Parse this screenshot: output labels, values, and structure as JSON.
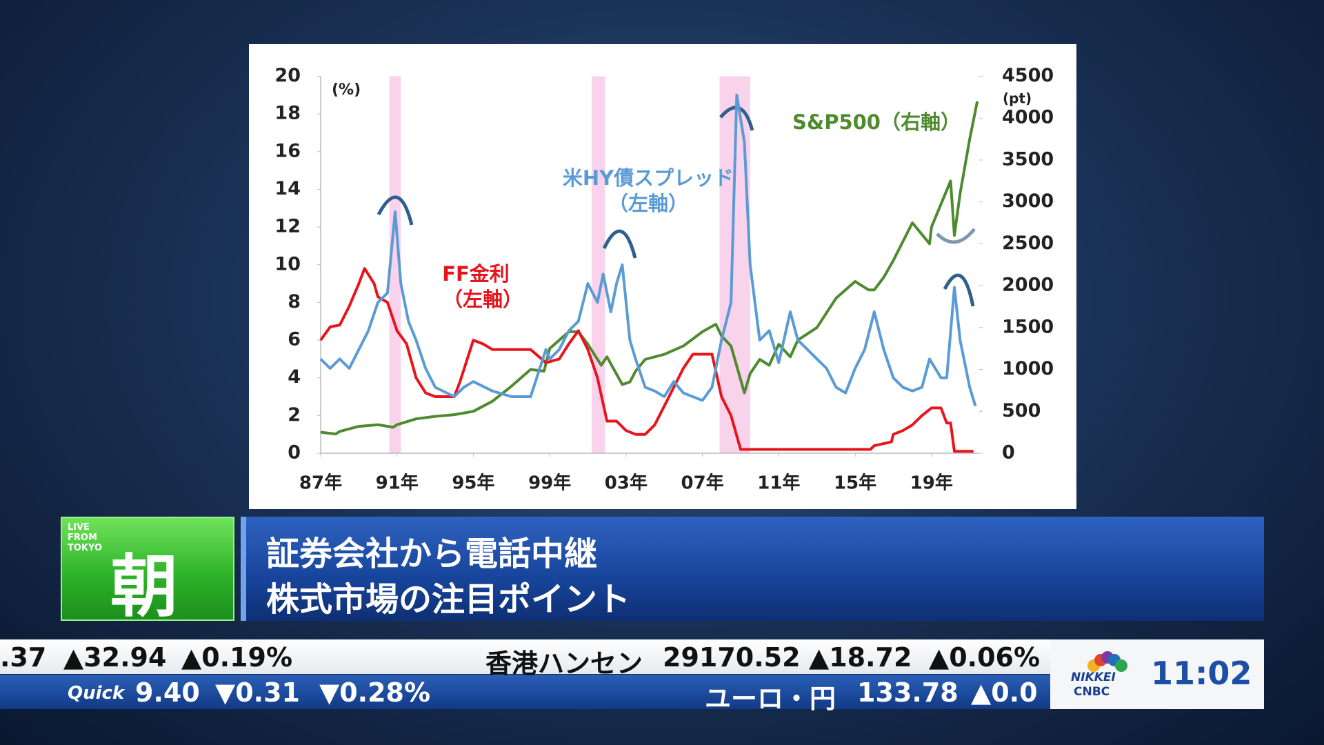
{
  "chart_data": {
    "type": "line",
    "y_unit": "(%)",
    "y2_unit": "(pt)",
    "xlim": [
      1987,
      2021.5
    ],
    "ylim": [
      0,
      20
    ],
    "y2lim": [
      0,
      4500
    ],
    "xticks": [
      {
        "value": 1987,
        "label": "87年"
      },
      {
        "value": 1991,
        "label": "91年"
      },
      {
        "value": 1995,
        "label": "95年"
      },
      {
        "value": 1999,
        "label": "99年"
      },
      {
        "value": 2003,
        "label": "03年"
      },
      {
        "value": 2007,
        "label": "07年"
      },
      {
        "value": 2011,
        "label": "11年"
      },
      {
        "value": 2015,
        "label": "15年"
      },
      {
        "value": 2019,
        "label": "19年"
      }
    ],
    "yticks": [
      0,
      2,
      4,
      6,
      8,
      10,
      12,
      14,
      16,
      18,
      20
    ],
    "y2ticks": [
      0,
      500,
      1000,
      1500,
      2000,
      2500,
      3000,
      3500,
      4000,
      4500
    ],
    "shaded_periods": [
      [
        1990.6,
        1991.2
      ],
      [
        2001.2,
        2001.9
      ],
      [
        2007.9,
        2009.5
      ]
    ],
    "shade_color": "#f9d3ec",
    "series": [
      {
        "name": "FF金利",
        "label_lines": [
          "FF金利",
          "（左軸）"
        ],
        "color": "#e8141c",
        "x": [
          1987,
          1987.5,
          1988,
          1988.5,
          1989,
          1989.3,
          1989.8,
          1990,
          1990.5,
          1991,
          1991.5,
          1992,
          1992.5,
          1993,
          1994,
          1994.3,
          1995,
          1995.5,
          1996,
          1997,
          1998,
          1998.8,
          1999.5,
          2000,
          2000.5,
          2001,
          2001.5,
          2002,
          2002.5,
          2003,
          2003.5,
          2004,
          2004.5,
          2005,
          2005.5,
          2006,
          2006.5,
          2007.5,
          2008,
          2008.5,
          2009,
          2015.8,
          2016,
          2016.9,
          2017,
          2017.5,
          2018,
          2018.5,
          2019,
          2019.5,
          2019.8,
          2020,
          2020.2,
          2021.2
        ],
        "values": [
          6.0,
          6.7,
          6.8,
          7.8,
          9.0,
          9.8,
          9.0,
          8.3,
          8.0,
          6.5,
          5.8,
          4.0,
          3.2,
          3.0,
          3.0,
          3.8,
          6.0,
          5.8,
          5.5,
          5.5,
          5.5,
          4.8,
          5.0,
          5.8,
          6.5,
          5.5,
          4.0,
          1.7,
          1.7,
          1.2,
          1.0,
          1.0,
          1.5,
          2.5,
          3.5,
          4.5,
          5.25,
          5.25,
          3.0,
          2.0,
          0.2,
          0.2,
          0.4,
          0.6,
          1.0,
          1.2,
          1.5,
          2.0,
          2.4,
          2.4,
          1.6,
          1.6,
          0.1,
          0.1
        ]
      },
      {
        "name": "米HY債スプレッド",
        "label_lines": [
          "米HY債スプレッド",
          "（左軸）"
        ],
        "color": "#5b9bd5",
        "x": [
          1987,
          1987.5,
          1988,
          1988.5,
          1989,
          1989.5,
          1990,
          1990.5,
          1990.9,
          1991.2,
          1991.6,
          1992,
          1992.5,
          1993,
          1994,
          1994.5,
          1995,
          1996,
          1997,
          1998,
          1998.8,
          1999,
          1999.5,
          2000,
          2000.5,
          2001,
          2001.5,
          2001.8,
          2002.2,
          2002.5,
          2002.8,
          2003.2,
          2003.5,
          2004,
          2004.5,
          2005,
          2005.5,
          2006,
          2007,
          2007.5,
          2008,
          2008.5,
          2008.8,
          2009.2,
          2009.5,
          2010,
          2010.5,
          2011,
          2011.6,
          2012,
          2012.5,
          2013,
          2013.5,
          2014,
          2014.5,
          2015,
          2015.5,
          2016,
          2016.5,
          2017,
          2017.5,
          2018,
          2018.5,
          2018.9,
          2019.5,
          2019.8,
          2020.2,
          2020.5,
          2021,
          2021.3
        ],
        "values": [
          5.0,
          4.5,
          5.0,
          4.5,
          5.5,
          6.5,
          8.0,
          8.5,
          12.8,
          9.0,
          7.0,
          6.0,
          4.5,
          3.5,
          3.0,
          3.5,
          3.8,
          3.3,
          3.0,
          3.0,
          5.5,
          5.0,
          5.5,
          6.5,
          7.0,
          9.0,
          8.0,
          9.5,
          7.5,
          9.0,
          10.0,
          6.0,
          5.0,
          3.5,
          3.3,
          3.0,
          3.8,
          3.2,
          2.8,
          3.5,
          6.0,
          8.0,
          19.0,
          16.5,
          10.0,
          6.0,
          6.5,
          4.8,
          7.5,
          6.0,
          5.5,
          5.0,
          4.5,
          3.5,
          3.2,
          4.5,
          5.5,
          7.5,
          5.5,
          4.0,
          3.5,
          3.3,
          3.5,
          5.0,
          4.0,
          4.0,
          8.8,
          6.0,
          3.5,
          2.5
        ]
      },
      {
        "name": "S&P500",
        "label_lines": [
          "S&P500（右軸）"
        ],
        "color": "#4e8a2e",
        "axis": "y2",
        "x": [
          1987,
          1987.8,
          1988,
          1989,
          1990,
          1990.8,
          1991,
          1992,
          1993,
          1994,
          1995,
          1996,
          1997,
          1998,
          1998.7,
          1999,
          2000,
          2000.5,
          2001,
          2001.7,
          2002,
          2002.8,
          2003.2,
          2003.5,
          2004,
          2005,
          2006,
          2007,
          2007.7,
          2008,
          2008.5,
          2009.2,
          2009.5,
          2010,
          2010.5,
          2011,
          2011.6,
          2012,
          2013,
          2014,
          2015,
          2015.7,
          2016,
          2016.5,
          2017,
          2018,
          2018.9,
          2019,
          2020,
          2020.2,
          2020.5,
          2021,
          2021.4
        ],
        "values": [
          250,
          230,
          260,
          320,
          340,
          310,
          340,
          410,
          440,
          460,
          500,
          620,
          800,
          1000,
          980,
          1250,
          1450,
          1450,
          1300,
          1050,
          1150,
          820,
          850,
          980,
          1120,
          1180,
          1280,
          1450,
          1540,
          1400,
          1280,
          720,
          950,
          1120,
          1050,
          1300,
          1150,
          1350,
          1500,
          1850,
          2050,
          1950,
          1950,
          2100,
          2300,
          2750,
          2500,
          2700,
          3250,
          2600,
          3100,
          3750,
          4200
        ]
      }
    ]
  },
  "broadcast": {
    "corner_tag": [
      "LIVE",
      "FROM",
      "TOKYO"
    ],
    "program": "朝",
    "headline": [
      "証券会社から電話中継",
      "株式市場の注目ポイント"
    ],
    "ticker_top": [
      ".37",
      "▲32.94",
      "▲0.19%",
      "香港ハンセン",
      "29170.52",
      "▲18.72",
      "▲0.06%"
    ],
    "ticker_bottom": [
      "Quick",
      "9.40",
      "▼0.31",
      "▼0.28%",
      "ユーロ・円",
      "133.78",
      "▲0.0"
    ],
    "logo": [
      "NIKKEI",
      "CNBC"
    ],
    "clock": "11:02"
  }
}
